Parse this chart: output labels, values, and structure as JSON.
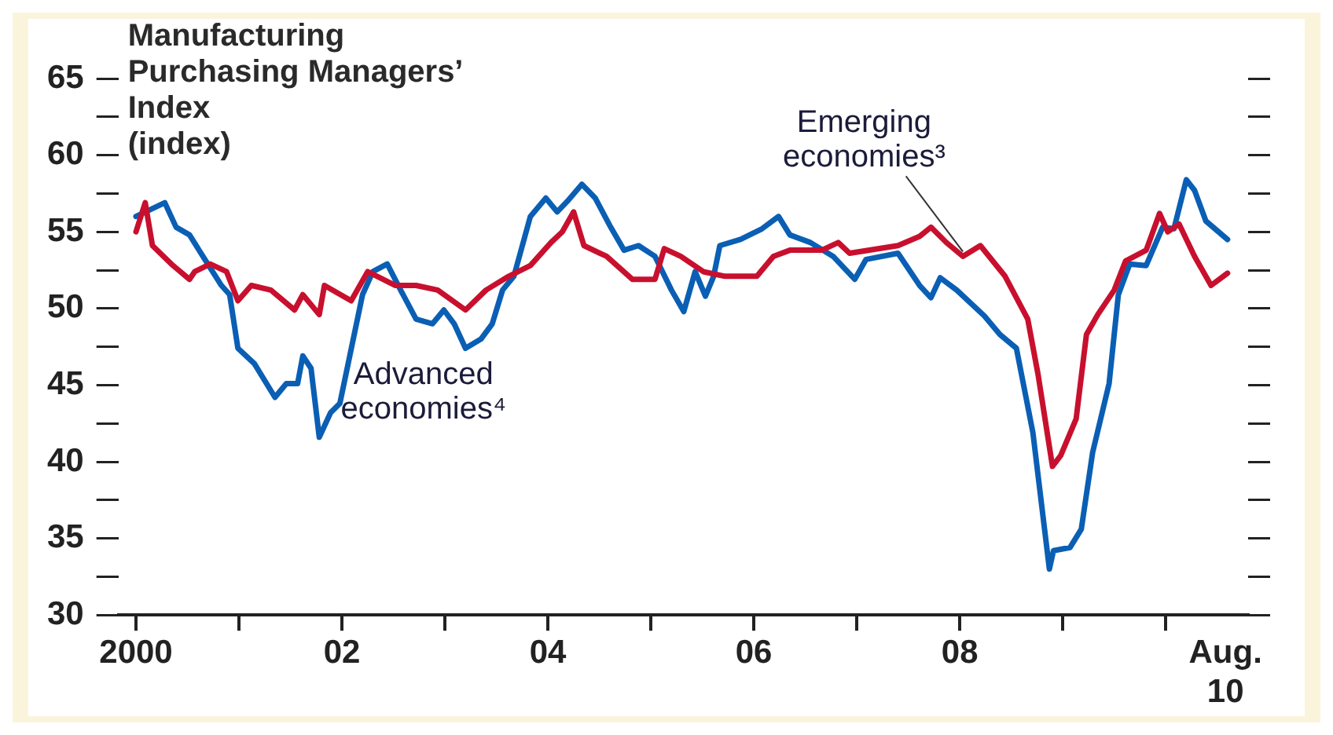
{
  "chart_data": {
    "type": "line",
    "title": "Manufacturing Purchasing Managers’ Index",
    "subtitle": "(index)",
    "xlim": [
      1999.83,
      2010.8
    ],
    "xticks": [
      2000,
      {
        "value": 2001,
        "label": null
      },
      {
        "value": 2002,
        "label": "02"
      },
      {
        "value": 2003,
        "label": null
      },
      {
        "value": 2004,
        "label": "04"
      },
      {
        "value": 2005,
        "label": null
      },
      {
        "value": 2006,
        "label": "06"
      },
      {
        "value": 2007,
        "label": null
      },
      {
        "value": 2008,
        "label": "08"
      },
      {
        "value": 2009,
        "label": null
      },
      {
        "value": 2010,
        "label": null
      },
      {
        "value": 2010.58,
        "label": "Aug.\n10"
      }
    ],
    "ylim": [
      30,
      65
    ],
    "yticks": [
      30,
      {
        "value": 32.5,
        "label": null
      },
      35,
      {
        "value": 37.5,
        "label": null
      },
      40,
      {
        "value": 42.5,
        "label": null
      },
      45,
      {
        "value": 47.5,
        "label": null
      },
      50,
      {
        "value": 52.5,
        "label": null
      },
      55,
      {
        "value": 57.5,
        "label": null
      },
      60,
      {
        "value": 62.5,
        "label": null
      },
      65
    ],
    "grid": false,
    "legend": false,
    "marker": "none",
    "line_style": "solid",
    "series": [
      {
        "name": "Emerging economies³",
        "color": "#c8102e",
        "x": [
          2000.0,
          2000.09,
          2000.16,
          2000.36,
          2000.52,
          2000.57,
          2000.72,
          2000.88,
          2000.99,
          2001.12,
          2001.31,
          2001.54,
          2001.62,
          2001.78,
          2001.83,
          2002.09,
          2002.25,
          2002.52,
          2002.72,
          2002.93,
          2003.2,
          2003.4,
          2003.62,
          2003.83,
          2004.03,
          2004.14,
          2004.25,
          2004.35,
          2004.57,
          2004.82,
          2005.04,
          2005.13,
          2005.29,
          2005.51,
          2005.72,
          2006.03,
          2006.19,
          2006.35,
          2006.66,
          2006.82,
          2006.93,
          2007.4,
          2007.61,
          2007.72,
          2007.87,
          2008.03,
          2008.2,
          2008.44,
          2008.66,
          2008.76,
          2008.9,
          2008.98,
          2009.13,
          2009.23,
          2009.34,
          2009.5,
          2009.61,
          2009.81,
          2009.94,
          2010.02,
          2010.13,
          2010.28,
          2010.44,
          2010.6
        ],
        "values": [
          55.0,
          56.9,
          54.1,
          52.8,
          51.9,
          52.4,
          52.9,
          52.4,
          50.5,
          51.5,
          51.2,
          49.9,
          50.9,
          49.6,
          51.5,
          50.5,
          52.4,
          51.5,
          51.5,
          51.2,
          49.9,
          51.2,
          52.1,
          52.8,
          54.3,
          55.0,
          56.3,
          54.1,
          53.4,
          51.9,
          51.9,
          53.9,
          53.4,
          52.4,
          52.1,
          52.1,
          53.4,
          53.8,
          53.8,
          54.3,
          53.6,
          54.1,
          54.7,
          55.3,
          54.3,
          53.4,
          54.1,
          52.1,
          49.3,
          45.7,
          39.7,
          40.4,
          42.8,
          48.3,
          49.6,
          51.2,
          53.1,
          53.8,
          56.2,
          55.0,
          55.5,
          53.4,
          51.5,
          52.3
        ]
      },
      {
        "name": "Advanced economies⁴",
        "color": "#0a5fb4",
        "x": [
          2000.0,
          2000.28,
          2000.39,
          2000.52,
          2000.65,
          2000.83,
          2000.91,
          2000.99,
          2001.15,
          2001.35,
          2001.46,
          2001.57,
          2001.62,
          2001.7,
          2001.78,
          2001.89,
          2001.98,
          2002.2,
          2002.3,
          2002.44,
          2002.57,
          2002.72,
          2002.88,
          2002.99,
          2003.09,
          2003.2,
          2003.35,
          2003.46,
          2003.56,
          2003.67,
          2003.83,
          2003.98,
          2004.09,
          2004.19,
          2004.33,
          2004.46,
          2004.61,
          2004.74,
          2004.88,
          2005.04,
          2005.2,
          2005.32,
          2005.43,
          2005.53,
          2005.61,
          2005.67,
          2005.87,
          2006.08,
          2006.24,
          2006.35,
          2006.55,
          2006.77,
          2006.98,
          2007.09,
          2007.4,
          2007.61,
          2007.72,
          2007.81,
          2007.97,
          2008.24,
          2008.39,
          2008.55,
          2008.71,
          2008.87,
          2008.91,
          2009.07,
          2009.18,
          2009.29,
          2009.45,
          2009.54,
          2009.65,
          2009.81,
          2009.97,
          2010.08,
          2010.2,
          2010.28,
          2010.39,
          2010.6
        ],
        "values": [
          56.0,
          56.9,
          55.3,
          54.8,
          53.4,
          51.5,
          50.9,
          47.4,
          46.4,
          44.2,
          45.1,
          45.1,
          46.9,
          46.1,
          41.6,
          43.2,
          43.8,
          50.9,
          52.4,
          52.9,
          51.2,
          49.3,
          49.0,
          49.9,
          49.0,
          47.4,
          48.0,
          49.0,
          51.2,
          52.1,
          56.0,
          57.2,
          56.3,
          57.0,
          58.1,
          57.2,
          55.3,
          53.8,
          54.1,
          53.4,
          51.2,
          49.8,
          52.4,
          50.8,
          52.1,
          54.1,
          54.5,
          55.2,
          56.0,
          54.8,
          54.3,
          53.4,
          51.9,
          53.2,
          53.6,
          51.5,
          50.7,
          52.0,
          51.2,
          49.5,
          48.3,
          47.4,
          41.9,
          33.0,
          34.2,
          34.4,
          35.6,
          40.6,
          45.1,
          50.9,
          52.9,
          52.8,
          55.3,
          55.2,
          58.4,
          57.7,
          55.7,
          54.5
        ]
      }
    ]
  }
}
